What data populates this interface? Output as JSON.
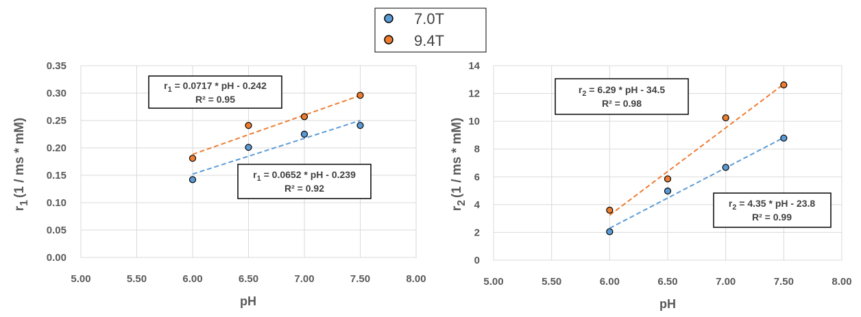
{
  "legend": [
    {
      "label": "7.0T",
      "color": "#5b9bd5"
    },
    {
      "label": "9.4T",
      "color": "#ed7d31"
    }
  ],
  "chart_data": [
    {
      "type": "scatter",
      "xlabel": "pH",
      "ylabel": "r₁ (1 / ms * mM)",
      "ylabel_main": "r",
      "ylabel_sub": "1",
      "ylabel_rest": "(1 / ms * mM)",
      "xlim": [
        5.0,
        8.0
      ],
      "ylim": [
        0.0,
        0.35
      ],
      "x_ticks": [
        "5.00",
        "5.50",
        "6.00",
        "6.50",
        "7.00",
        "7.50",
        "8.00"
      ],
      "y_ticks": [
        "0.00",
        "0.05",
        "0.10",
        "0.15",
        "0.20",
        "0.25",
        "0.30",
        "0.35"
      ],
      "x_tick_values": [
        5.0,
        5.5,
        6.0,
        6.5,
        7.0,
        7.5,
        8.0
      ],
      "y_tick_values": [
        0.0,
        0.05,
        0.1,
        0.15,
        0.2,
        0.25,
        0.3,
        0.35
      ],
      "grid": true,
      "series": [
        {
          "name": "7.0T",
          "color": "#5b9bd5",
          "x": [
            6.0,
            6.5,
            7.0,
            7.5
          ],
          "y": [
            0.142,
            0.201,
            0.225,
            0.241
          ],
          "fit": {
            "slope": 0.0652,
            "intercept": -0.239
          },
          "equation": {
            "sym": "r",
            "sub": "1",
            "rest": " = 0.0652 * pH - 0.239",
            "r2": "R² = 0.92"
          }
        },
        {
          "name": "9.4T",
          "color": "#ed7d31",
          "x": [
            6.0,
            6.5,
            7.0,
            7.5
          ],
          "y": [
            0.181,
            0.241,
            0.257,
            0.296
          ],
          "fit": {
            "slope": 0.0717,
            "intercept": -0.242
          },
          "equation": {
            "sym": "r",
            "sub": "1",
            "rest": " = 0.0717 * pH - 0.242",
            "r2": "R² = 0.95"
          }
        }
      ]
    },
    {
      "type": "scatter",
      "xlabel": "pH",
      "ylabel": "r₂ (1 / ms * mM)",
      "ylabel_main": "r",
      "ylabel_sub": "2",
      "ylabel_rest": "(1 / ms * mM)",
      "xlim": [
        5.0,
        8.0
      ],
      "ylim": [
        0,
        14
      ],
      "x_ticks": [
        "5.00",
        "5.50",
        "6.00",
        "6.50",
        "7.00",
        "7.50",
        "8.00"
      ],
      "y_ticks": [
        "0",
        "2",
        "4",
        "6",
        "8",
        "10",
        "12",
        "14"
      ],
      "x_tick_values": [
        5.0,
        5.5,
        6.0,
        6.5,
        7.0,
        7.5,
        8.0
      ],
      "y_tick_values": [
        0,
        2,
        4,
        6,
        8,
        10,
        12,
        14
      ],
      "grid": true,
      "series": [
        {
          "name": "7.0T",
          "color": "#5b9bd5",
          "x": [
            6.0,
            6.5,
            7.0,
            7.5
          ],
          "y": [
            2.05,
            4.98,
            6.68,
            8.79
          ],
          "fit": {
            "slope": 4.35,
            "intercept": -23.8
          },
          "equation": {
            "sym": "r",
            "sub": "2",
            "rest": " = 4.35 * pH - 23.8",
            "r2": "R² = 0.99"
          }
        },
        {
          "name": "9.4T",
          "color": "#ed7d31",
          "x": [
            6.0,
            6.5,
            7.0,
            7.5
          ],
          "y": [
            3.6,
            5.85,
            10.25,
            12.62
          ],
          "fit": {
            "slope": 6.29,
            "intercept": -34.5
          },
          "equation": {
            "sym": "r",
            "sub": "2",
            "rest": " = 6.29 * pH - 34.5",
            "r2": "R² = 0.98"
          }
        }
      ]
    }
  ]
}
